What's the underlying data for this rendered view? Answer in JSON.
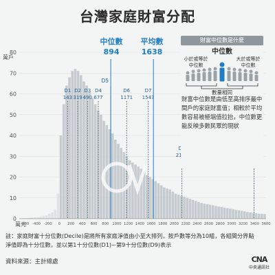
{
  "title": "台灣家庭財富分配",
  "y_unit": "萬戶",
  "x_unit": "萬元",
  "median": {
    "label": "中位數",
    "value": "894"
  },
  "mean": {
    "label": "平均數",
    "value": "1638"
  },
  "panel": {
    "header": "財富中位數是什麼",
    "figure_title": "中位數",
    "left_text": "小於或等於中位數",
    "right_text": "大於或等於中位數",
    "bottom_text": "數量相同",
    "description": "財富中位數是由低至高排序最中間戶的家庭財富值；相較於平均數容易被極端值拉抬，中位數更能反映多數民眾的現狀"
  },
  "footnote": "註：家庭財富十分位數(Decile)是將所有家庭淨值由小至大排列，按戶數等分為10組，各組間分界點淨值即為十分位數，並以第1十分位數(D1)~第9十分位數(D9)表示",
  "source": "資料來源：主計總處",
  "logo": {
    "mark": "CNA",
    "sub": "中央通訊社"
  },
  "colors": {
    "bars": "#c5cbcf",
    "bars_low": "#dfe3e5",
    "accent": "#1f7ec4",
    "marker": "#5c6e7a",
    "text": "#3a3a3a"
  },
  "chart_data": {
    "type": "bar",
    "title": "台灣家庭財富分配",
    "ylabel": "萬戶",
    "xlabel": "萬元",
    "xlim": [
      -700,
      3600
    ],
    "ylim": [
      0,
      80
    ],
    "yticks": [
      0,
      10,
      20,
      30,
      40,
      50,
      60,
      70,
      80
    ],
    "xticks": [
      -600,
      -400,
      -200,
      0,
      200,
      400,
      600,
      800,
      1000,
      1200,
      1400,
      1600,
      1800,
      2000,
      2200,
      2400,
      2600,
      2800,
      3000,
      3200,
      3400,
      3600
    ],
    "bin_width": 50,
    "bin_starts": [
      -700,
      -650,
      -600,
      -550,
      -500,
      -450,
      -400,
      -350,
      -300,
      -250,
      -200,
      -150,
      -100,
      -50,
      0,
      50,
      100,
      150,
      200,
      250,
      300,
      350,
      400,
      450,
      500,
      550,
      600,
      650,
      700,
      750,
      800,
      850,
      900,
      950,
      1000,
      1050,
      1100,
      1150,
      1200,
      1250,
      1300,
      1350,
      1400,
      1450,
      1500,
      1550,
      1600,
      1650,
      1700,
      1750,
      1800,
      1850,
      1900,
      1950,
      2000,
      2050,
      2100,
      2150,
      2200,
      2250,
      2300,
      2350,
      2400,
      2450,
      2500,
      2550,
      2600,
      2650,
      2700,
      2750,
      2800,
      2850,
      2900,
      2950,
      3000,
      3050,
      3100,
      3150,
      3200,
      3250,
      3300,
      3350,
      3400,
      3450,
      3500,
      3550
    ],
    "values": [
      0.2,
      0.3,
      0.3,
      0.4,
      0.5,
      0.6,
      0.7,
      0.9,
      1.2,
      1.6,
      2.2,
      3.1,
      4.5,
      12,
      40,
      55,
      64,
      68,
      71,
      72,
      71,
      69,
      66,
      64,
      61,
      58,
      55,
      52,
      50,
      47,
      45,
      43,
      41,
      38,
      36,
      34,
      32,
      30,
      28,
      27,
      26,
      25,
      24,
      23,
      21,
      20,
      19,
      18,
      17,
      16,
      15,
      14.5,
      14,
      13,
      12,
      11.5,
      11,
      10.5,
      10,
      9.5,
      9,
      8.5,
      8,
      7.5,
      7.2,
      7,
      6.7,
      6.4,
      6.1,
      5.8,
      5.6,
      5.3,
      5,
      4.8,
      4.5,
      4.2,
      4,
      3.8,
      3.5,
      3.2,
      3,
      2.8,
      2.6,
      2.4,
      2.3,
      2.2
    ],
    "deciles": [
      {
        "name": "D1",
        "value": 143
      },
      {
        "name": "D2",
        "value": 319
      },
      {
        "name": "D3",
        "value": 490
      },
      {
        "name": "D4",
        "value": 677
      },
      {
        "name": "D5",
        "value": 894
      },
      {
        "name": "D6",
        "value": 1171
      },
      {
        "name": "D7",
        "value": 1547
      },
      {
        "name": "D8",
        "value": 2134
      },
      {
        "name": "D9",
        "value": 3391
      }
    ],
    "median": 894,
    "mean": 1638
  }
}
